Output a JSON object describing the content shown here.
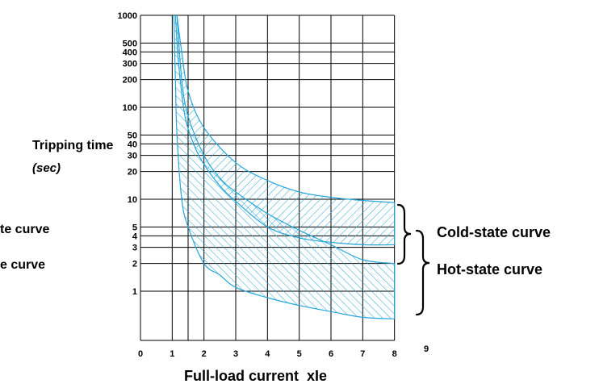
{
  "chart_data": {
    "type": "area",
    "xlabel": "Full-load current  xIe",
    "ylabel": "Tripping time",
    "ylabel_unit": "(sec)",
    "y_scale": "log",
    "ylim": [
      0.2,
      1000
    ],
    "xlim": [
      0,
      9
    ],
    "x_ticks": [
      "0",
      "1",
      "2",
      "3",
      "4",
      "5",
      "6",
      "7",
      "8",
      "9"
    ],
    "y_ticks": [
      "1",
      "2",
      "3",
      "4",
      "5",
      "10",
      "20",
      "30",
      "40",
      "50",
      "100",
      "200",
      "300",
      "400",
      "500",
      "1000"
    ],
    "grid": true,
    "series": [
      {
        "name": "Cold-state curve",
        "hatch": "diagonal-down",
        "upper": [
          [
            1.15,
            1000
          ],
          [
            1.3,
            400
          ],
          [
            1.5,
            150
          ],
          [
            2,
            60
          ],
          [
            3,
            25
          ],
          [
            4,
            16
          ],
          [
            5,
            12
          ],
          [
            6,
            10.5
          ],
          [
            7,
            9.7
          ],
          [
            8,
            9.2
          ]
        ],
        "lower": [
          [
            1.1,
            1000
          ],
          [
            1.2,
            300
          ],
          [
            1.4,
            80
          ],
          [
            1.7,
            38
          ],
          [
            2,
            24
          ],
          [
            2.5,
            14
          ],
          [
            3,
            9.5
          ],
          [
            4,
            5
          ],
          [
            5,
            3.8
          ],
          [
            6,
            3.4
          ],
          [
            7,
            3.2
          ],
          [
            8,
            3.2
          ]
        ]
      },
      {
        "name": "Hot-state curve",
        "hatch": "diagonal-up",
        "upper": [
          [
            1.15,
            1000
          ],
          [
            1.3,
            200
          ],
          [
            1.5,
            80
          ],
          [
            2,
            30
          ],
          [
            2.5,
            17
          ],
          [
            3,
            12
          ],
          [
            4,
            7
          ],
          [
            5,
            4.6
          ],
          [
            6,
            3.2
          ],
          [
            7,
            2.2
          ],
          [
            8,
            2
          ]
        ],
        "lower": [
          [
            1.05,
            1000
          ],
          [
            1.1,
            200
          ],
          [
            1.15,
            50
          ],
          [
            1.3,
            10
          ],
          [
            1.5,
            5
          ],
          [
            2,
            2
          ],
          [
            2.5,
            1.5
          ],
          [
            3,
            1.1
          ],
          [
            4,
            0.85
          ],
          [
            5,
            0.7
          ],
          [
            6,
            0.6
          ],
          [
            7,
            0.52
          ],
          [
            8,
            0.5
          ]
        ]
      }
    ],
    "colors": {
      "band": "#27a6d9",
      "grid": "#000000"
    },
    "annotations": [
      "Cold-state curve",
      "Hot-state curve",
      "te curve",
      "e curve"
    ]
  }
}
